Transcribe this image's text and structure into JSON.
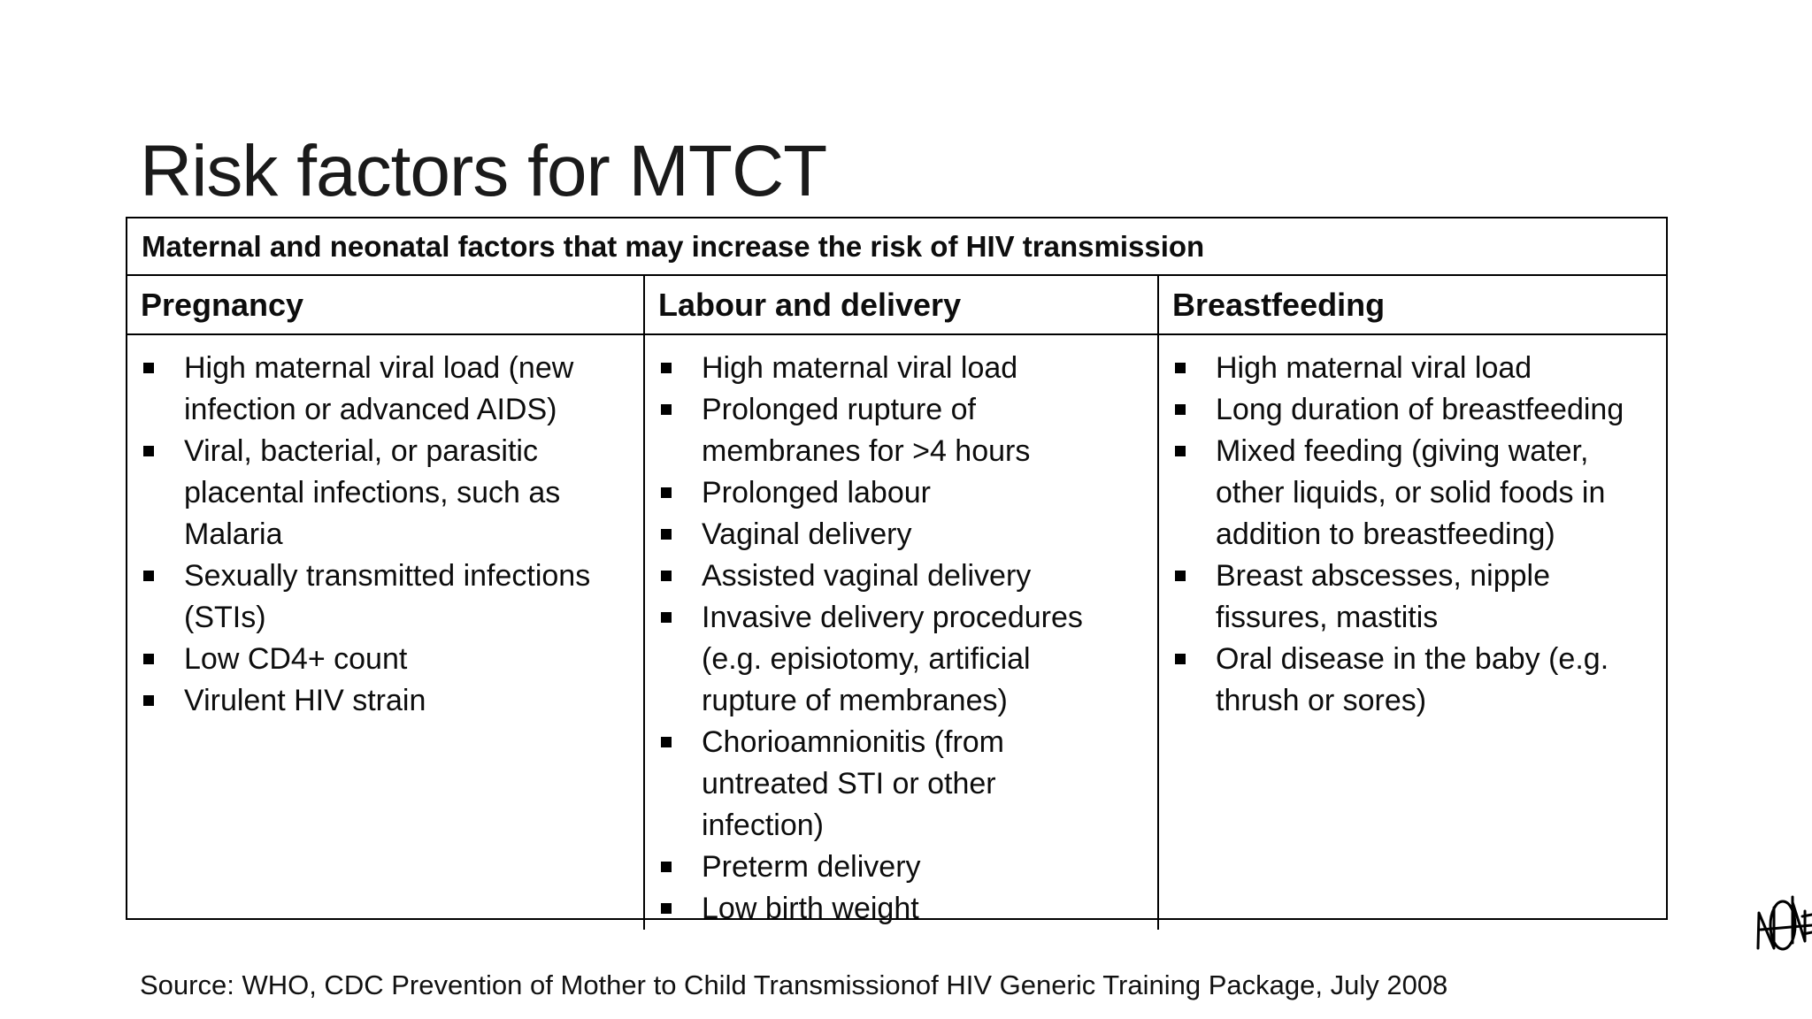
{
  "slide": {
    "title": "Risk factors for MTCT",
    "source": "Source: WHO, CDC Prevention of Mother to Child Transmissionof HIV Generic Training Package, July 2008"
  },
  "table": {
    "caption": "Maternal and neonatal factors that may increase the risk of HIV transmission",
    "columns": [
      {
        "header": "Pregnancy",
        "items": [
          "High maternal viral load (new\ninfection or advanced AIDS)",
          "Viral, bacterial, or parasitic\nplacental infections, such as\nMalaria",
          "Sexually transmitted infections\n(STIs)",
          "Low CD4+ count",
          "Virulent HIV strain"
        ]
      },
      {
        "header": "Labour and delivery",
        "items": [
          "High maternal viral load",
          "Prolonged rupture of\nmembranes for >4 hours",
          "Prolonged labour",
          "Vaginal delivery",
          "Assisted vaginal delivery",
          "Invasive delivery procedures\n(e.g. episiotomy, artificial\nrupture of membranes)",
          "Chorioamnionitis (from\nuntreated STI or other\ninfection)",
          "Preterm delivery",
          "Low birth weight"
        ]
      },
      {
        "header": "Breastfeeding",
        "items": [
          "High maternal viral load",
          "Long duration of breastfeeding",
          "Mixed feeding (giving water,\nother liquids, or solid foods in\naddition to breastfeeding)",
          "Breast abscesses, nipple\nfissures, mastitis",
          "Oral disease in the baby (e.g.\nthrush or sores)"
        ]
      }
    ]
  },
  "icons": {
    "bullet_glyph": "▪"
  },
  "colors": {
    "background": "#ffffff",
    "text": "#0d0d0d",
    "border": "#000000"
  }
}
